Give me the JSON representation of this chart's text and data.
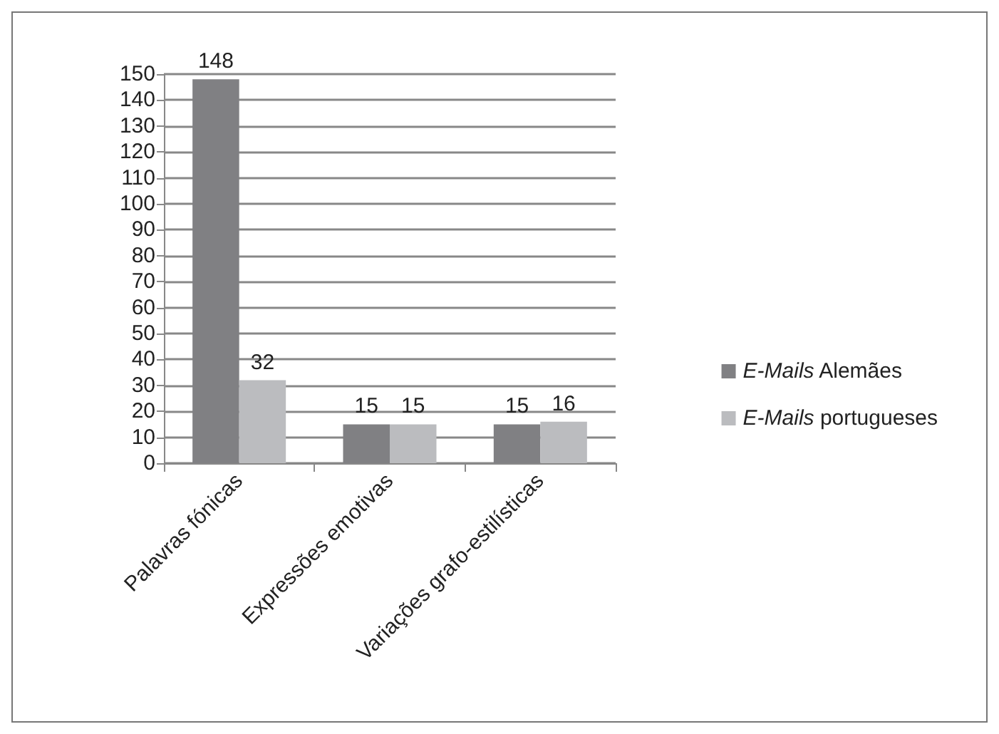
{
  "chart_data": {
    "type": "bar",
    "categories": [
      "Palavras fónicas",
      "Expressões emotivas",
      "Variações grafo-estilísticas"
    ],
    "series": [
      {
        "name": "E-Mails Alemães",
        "color": "#808083",
        "values": [
          148,
          15,
          15
        ]
      },
      {
        "name": "E-Mails portugueses",
        "color": "#bbbcbf",
        "values": [
          32,
          15,
          16
        ]
      }
    ],
    "ylim": [
      0,
      150
    ],
    "yticks": [
      0,
      10,
      20,
      30,
      40,
      50,
      60,
      70,
      80,
      90,
      100,
      110,
      120,
      130,
      140,
      150
    ],
    "grid": "y",
    "legend": "right",
    "data_labels": true
  }
}
